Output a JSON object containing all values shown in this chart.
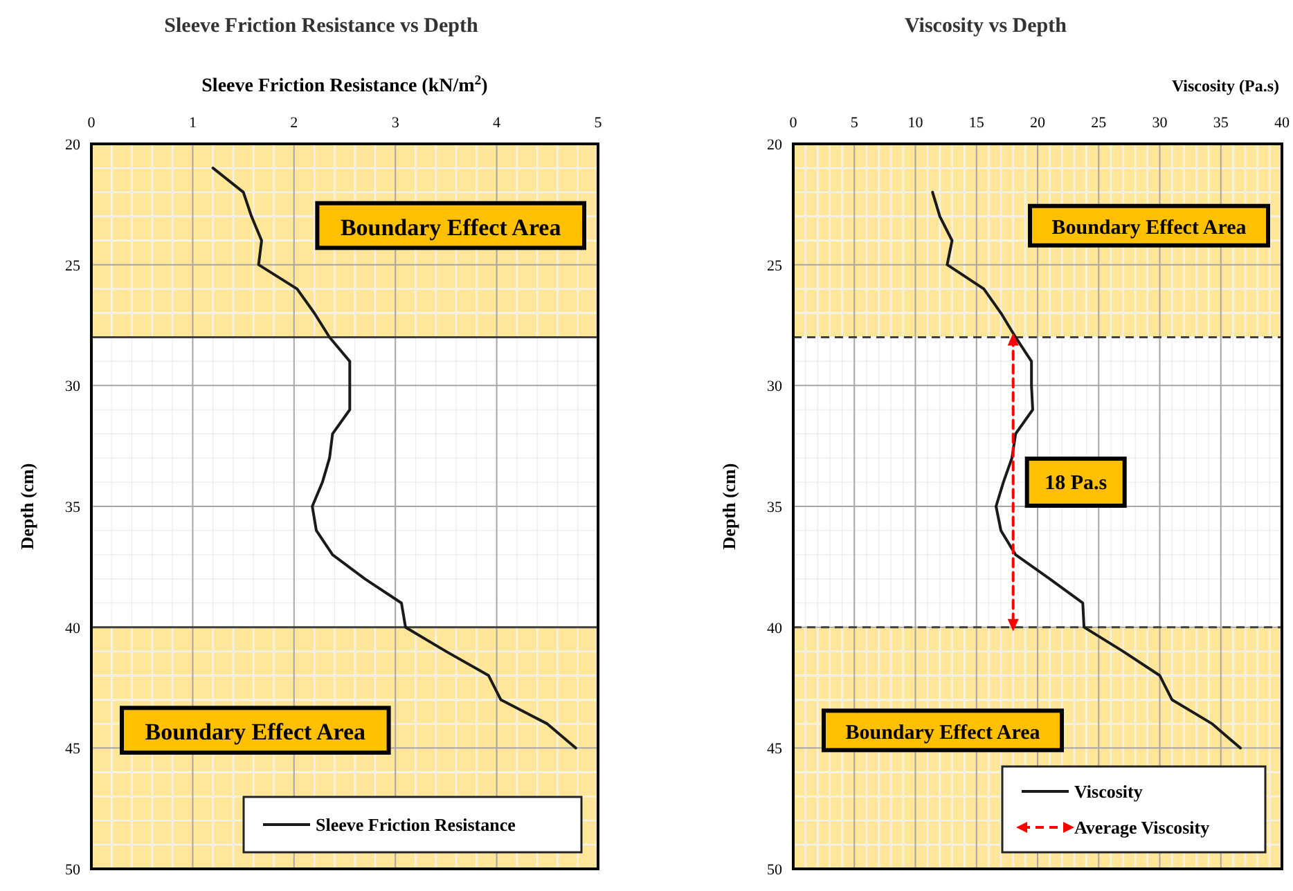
{
  "chart_data": [
    {
      "type": "line",
      "title": "Sleeve Friction Resistance vs Depth",
      "xlabel": "Sleeve Friction Resistance (kN/m$^{2}$)",
      "ylabel": "Depth (cm)",
      "xlim": [
        0,
        5
      ],
      "xticks": [
        0,
        1,
        2,
        3,
        4,
        5
      ],
      "ylim": [
        50,
        20
      ],
      "yticks": [
        20,
        25,
        30,
        35,
        40,
        45,
        50
      ],
      "grid": true,
      "legend": "bottom right",
      "marker": "none",
      "bands": [
        {
          "axis": "y",
          "from": 20,
          "to": 28,
          "label": "Boundary Effect Area",
          "color": "#ffe699"
        },
        {
          "axis": "y",
          "from": 40,
          "to": 50,
          "label": "Boundary Effect Area",
          "color": "#ffe699"
        }
      ],
      "ref_lines": [
        {
          "axis": "y",
          "value": 28,
          "color": "#404040",
          "line_style": "solid"
        },
        {
          "axis": "y",
          "value": 40,
          "color": "#404040",
          "line_style": "solid"
        }
      ],
      "series": [
        {
          "name": "Sleeve Friction Resistance",
          "color": "#1a1a1a",
          "line_style": "solid",
          "x": [
            1.2,
            1.5,
            1.58,
            1.68,
            1.65,
            2.03,
            2.2,
            2.35,
            2.55,
            2.55,
            2.55,
            2.38,
            2.35,
            2.28,
            2.18,
            2.22,
            2.38,
            2.7,
            3.06,
            3.1,
            3.5,
            3.92,
            4.04,
            4.5,
            4.78
          ],
          "values": [
            21,
            22,
            23,
            24,
            25,
            26,
            27,
            28,
            29,
            30,
            31,
            32,
            33,
            34,
            35,
            36,
            37,
            38,
            39,
            40,
            41,
            42,
            43,
            44,
            45
          ]
        }
      ]
    },
    {
      "type": "line",
      "title": "Viscosity vs Depth",
      "xlabel": "Viscosity (Pa.s)",
      "ylabel": "Depth (cm)",
      "xlim": [
        0,
        40
      ],
      "xticks": [
        0,
        5,
        10,
        15,
        20,
        25,
        30,
        35,
        40
      ],
      "ylim": [
        50,
        20
      ],
      "yticks": [
        20,
        25,
        30,
        35,
        40,
        45,
        50
      ],
      "grid": true,
      "legend": "bottom right",
      "marker": "none",
      "bands": [
        {
          "axis": "y",
          "from": 20,
          "to": 28,
          "label": "Boundary Effect Area",
          "color": "#ffe699"
        },
        {
          "axis": "y",
          "from": 40,
          "to": 50,
          "label": "Boundary Effect Area",
          "color": "#ffe699"
        }
      ],
      "annotations": [
        {
          "text": "18 Pa.s",
          "x": 18,
          "y": 34
        }
      ],
      "ref_lines": [
        {
          "axis": "y",
          "value": 28,
          "color": "#404040",
          "line_style": "dashed"
        },
        {
          "axis": "y",
          "value": 40,
          "color": "#404040",
          "line_style": "dashed"
        }
      ],
      "series": [
        {
          "name": "Viscosity",
          "color": "#1a1a1a",
          "line_style": "solid",
          "x": [
            11.4,
            12,
            13,
            12.6,
            15.6,
            17,
            18.2,
            19.5,
            19.5,
            19.6,
            18.2,
            17.9,
            17.2,
            16.6,
            17,
            18.2,
            21,
            23.7,
            23.8,
            27,
            30,
            31,
            34.3,
            36.6
          ],
          "values": [
            22,
            23,
            24,
            25,
            26,
            27,
            28,
            29,
            30,
            31,
            32,
            33,
            34,
            35,
            36,
            37,
            38,
            39,
            40,
            41,
            42,
            43,
            44,
            45
          ]
        },
        {
          "name": "Average Viscosity",
          "color": "#ff0000",
          "line_style": "dashed",
          "marker": "triangle",
          "x": [
            18,
            18
          ],
          "values": [
            28,
            40
          ]
        }
      ]
    }
  ]
}
